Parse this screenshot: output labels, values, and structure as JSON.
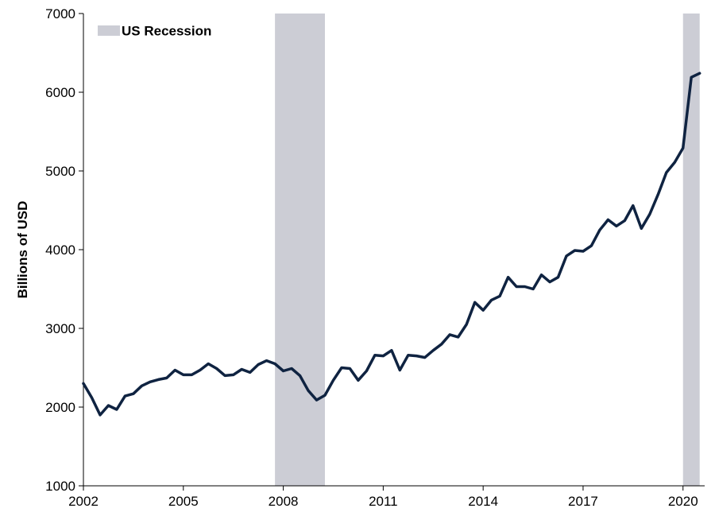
{
  "chart_data": {
    "type": "line",
    "title": "",
    "xlabel": "",
    "ylabel": "Billions of USD",
    "xlim": [
      2002.0,
      2020.65
    ],
    "ylim": [
      1000,
      7000
    ],
    "x_ticks": [
      2002,
      2005,
      2008,
      2011,
      2014,
      2017,
      2020
    ],
    "y_ticks": [
      1000,
      2000,
      3000,
      4000,
      5000,
      6000,
      7000
    ],
    "grid": false,
    "legend": {
      "position": "top-left",
      "entries": [
        {
          "label": "US Recession",
          "color": "#cccdd5"
        }
      ]
    },
    "recessions": [
      {
        "start": 2007.75,
        "end": 2009.25
      },
      {
        "start": 2020.0,
        "end": 2020.5
      }
    ],
    "series": [
      {
        "color": "#0f2341",
        "x": [
          2002.0,
          2002.25,
          2002.5,
          2002.75,
          2003.0,
          2003.25,
          2003.5,
          2003.75,
          2004.0,
          2004.25,
          2004.5,
          2004.75,
          2005.0,
          2005.25,
          2005.5,
          2005.75,
          2006.0,
          2006.25,
          2006.5,
          2006.75,
          2007.0,
          2007.25,
          2007.5,
          2007.75,
          2008.0,
          2008.25,
          2008.5,
          2008.75,
          2009.0,
          2009.25,
          2009.5,
          2009.75,
          2010.0,
          2010.25,
          2010.5,
          2010.75,
          2011.0,
          2011.25,
          2011.5,
          2011.75,
          2012.0,
          2012.25,
          2012.5,
          2012.75,
          2013.0,
          2013.25,
          2013.5,
          2013.75,
          2014.0,
          2014.25,
          2014.5,
          2014.75,
          2015.0,
          2015.25,
          2015.5,
          2015.75,
          2016.0,
          2016.25,
          2016.5,
          2016.75,
          2017.0,
          2017.25,
          2017.5,
          2017.75,
          2018.0,
          2018.25,
          2018.5,
          2018.75,
          2019.0,
          2019.25,
          2019.5,
          2019.75,
          2020.0,
          2020.25,
          2020.5
        ],
        "values": [
          2300,
          2120,
          1900,
          2020,
          1970,
          2140,
          2170,
          2270,
          2320,
          2350,
          2370,
          2470,
          2410,
          2410,
          2470,
          2550,
          2490,
          2400,
          2410,
          2480,
          2440,
          2540,
          2590,
          2550,
          2460,
          2490,
          2400,
          2210,
          2090,
          2150,
          2340,
          2500,
          2490,
          2340,
          2460,
          2660,
          2650,
          2720,
          2470,
          2660,
          2650,
          2630,
          2720,
          2800,
          2920,
          2890,
          3050,
          3330,
          3230,
          3360,
          3410,
          3650,
          3530,
          3530,
          3500,
          3680,
          3590,
          3650,
          3920,
          3990,
          3980,
          4050,
          4250,
          4380,
          4300,
          4370,
          4560,
          4270,
          4450,
          4700,
          4980,
          5110,
          5290,
          6190,
          6240
        ]
      }
    ]
  }
}
